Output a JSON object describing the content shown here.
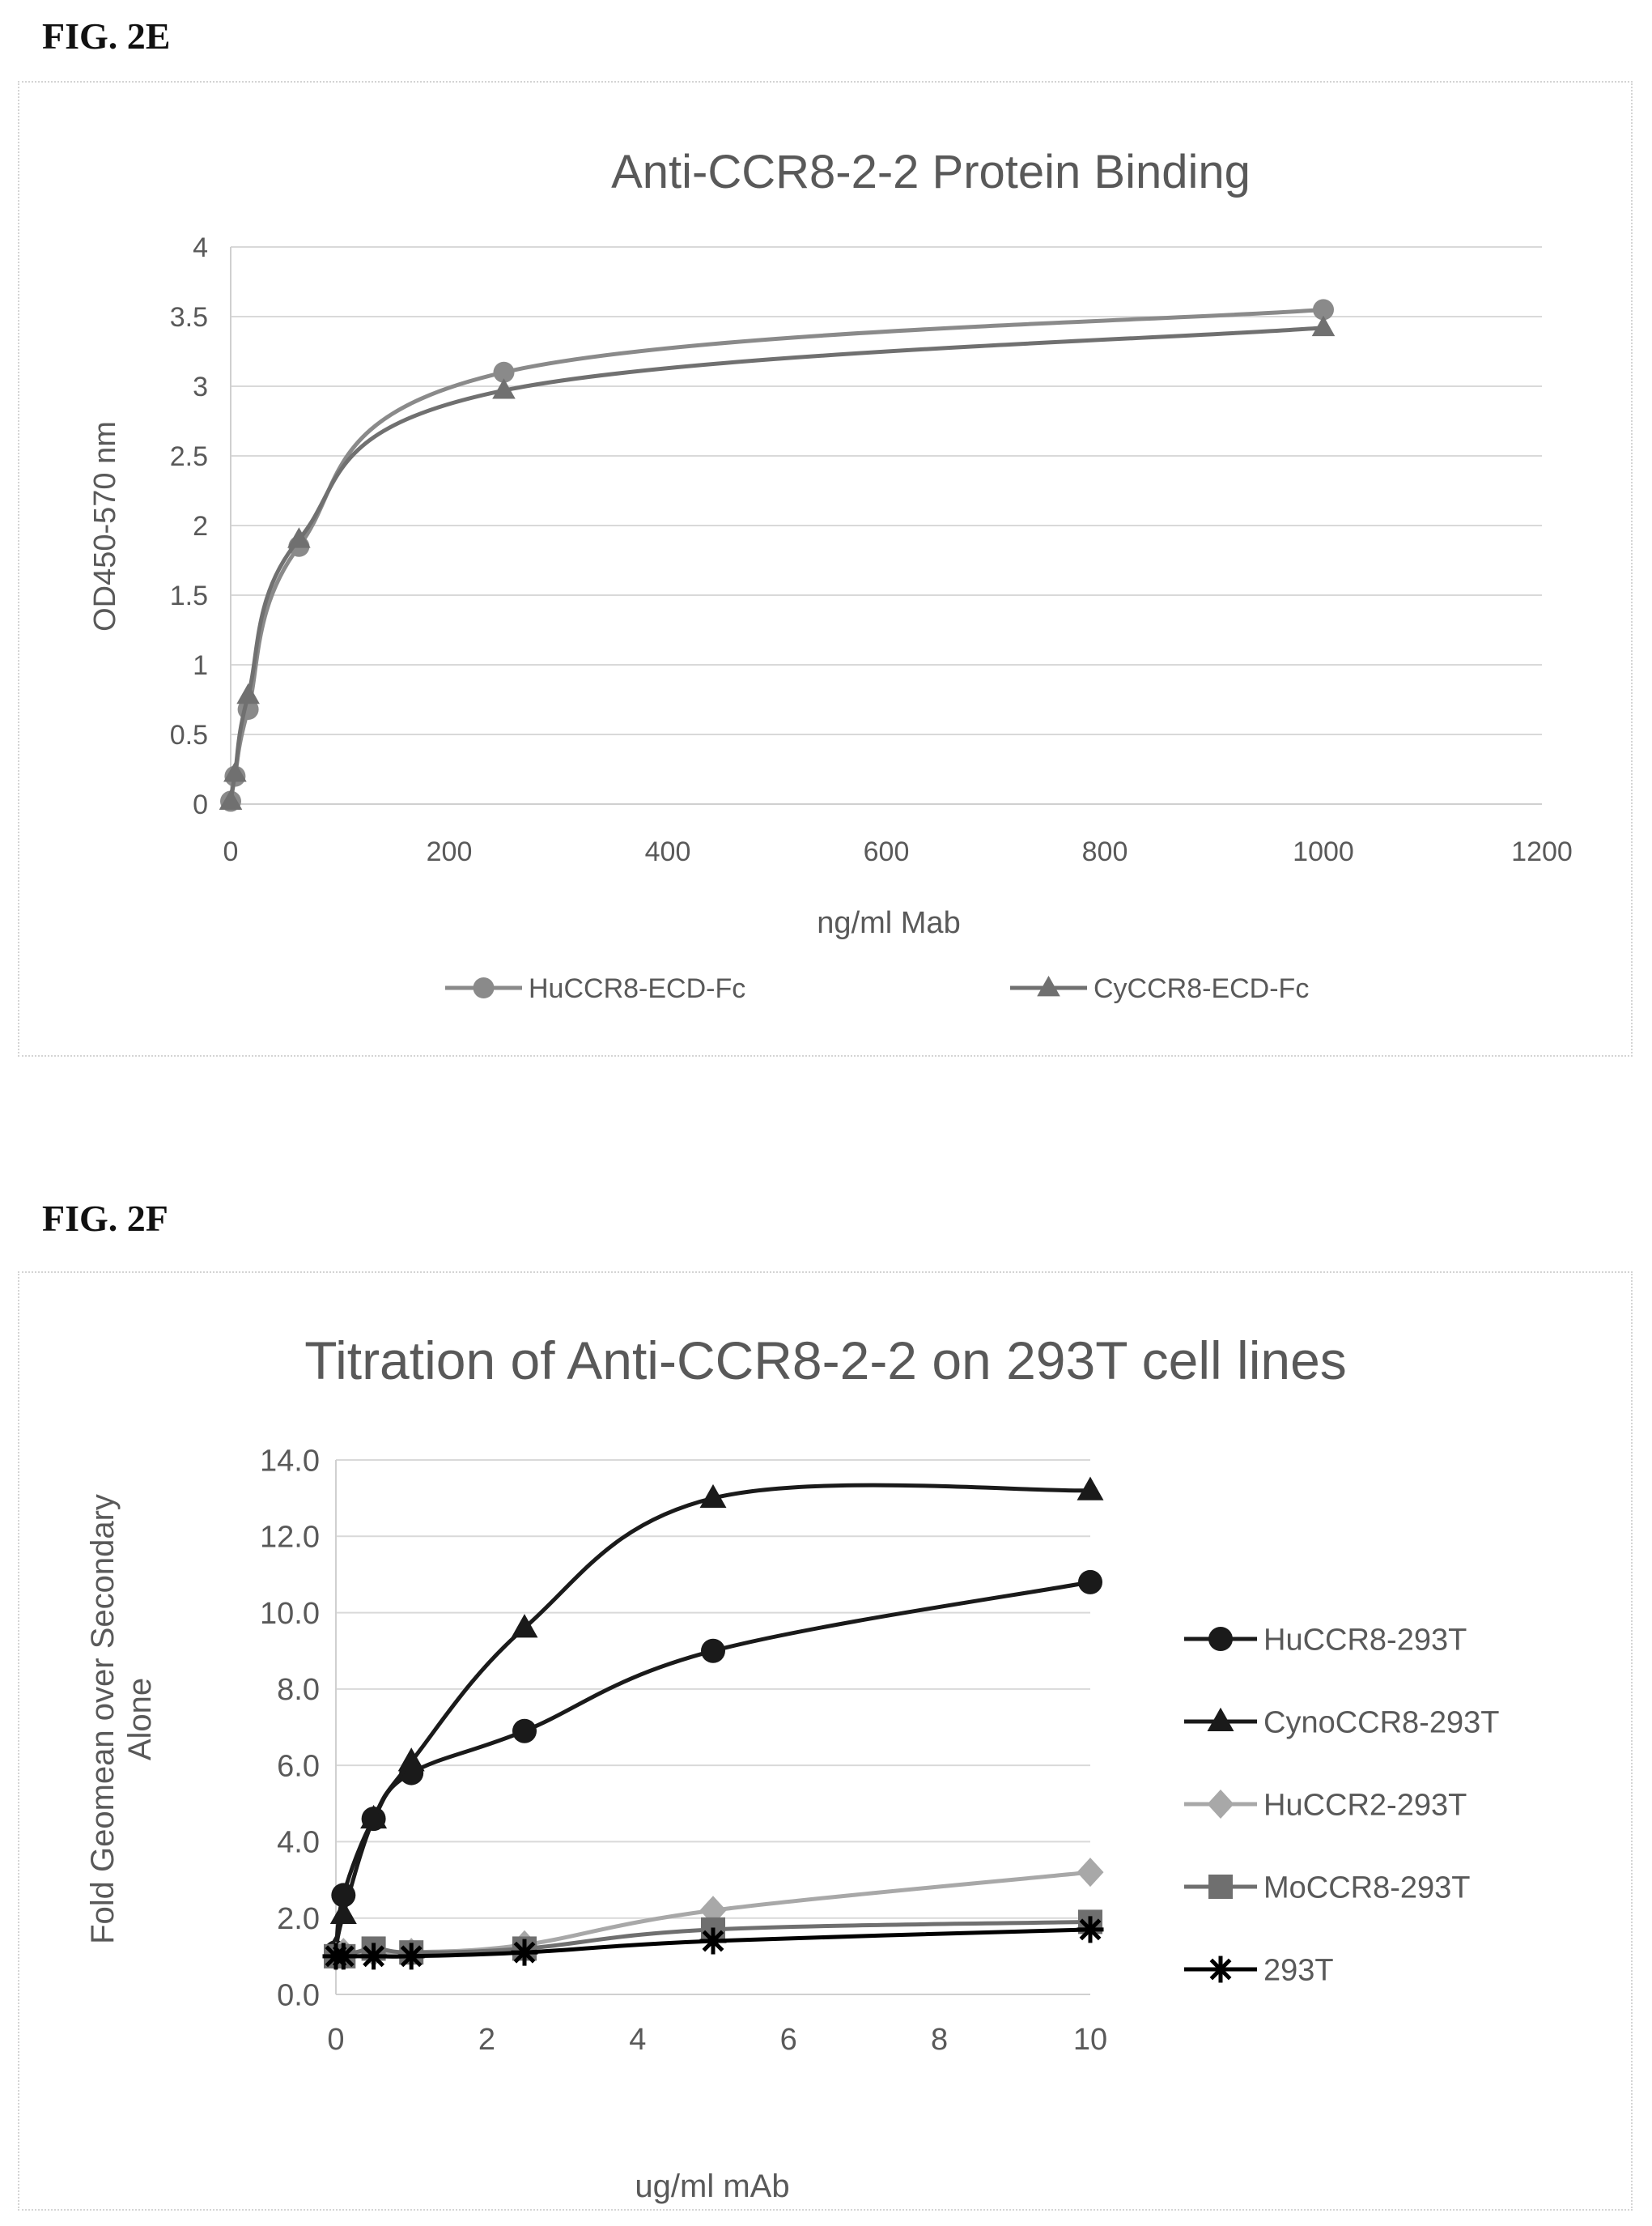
{
  "figures": [
    {
      "label": "FIG. 2E",
      "chart_data": {
        "type": "line",
        "title": "Anti-CCR8-2-2 Protein Binding",
        "xlabel": "ng/ml Mab",
        "ylabel": "OD450-570 nm",
        "xlim": [
          0,
          1200
        ],
        "ylim": [
          0,
          4
        ],
        "xticks": [
          0,
          200,
          400,
          600,
          800,
          1000,
          1200
        ],
        "yticks": [
          0,
          0.5,
          1,
          1.5,
          2,
          2.5,
          3,
          3.5,
          4
        ],
        "ytick_labels": [
          "0",
          "0.5",
          "1",
          "1.5",
          "2",
          "2.5",
          "3",
          "3.5",
          "4"
        ],
        "grid": true,
        "legend": "bottom",
        "x": [
          0,
          4,
          16,
          62.5,
          250,
          1000
        ],
        "series": [
          {
            "name": "HuCCR8-ECD-Fc",
            "marker": "circle",
            "color": "#8a8a8a",
            "values": [
              0.02,
              0.2,
              0.68,
              1.85,
              3.1,
              3.55
            ]
          },
          {
            "name": "CyCCR8-ECD-Fc",
            "marker": "triangle",
            "color": "#707070",
            "values": [
              0.02,
              0.22,
              0.78,
              1.9,
              2.97,
              3.42
            ]
          }
        ]
      }
    },
    {
      "label": "FIG. 2F",
      "chart_data": {
        "type": "line",
        "title": "Titration of Anti-CCR8-2-2 on 293T cell lines",
        "xlabel": "ug/ml mAb",
        "ylabel": "Fold Geomean over Secondary Alone",
        "xlim": [
          0,
          10
        ],
        "ylim": [
          0,
          14
        ],
        "xticks": [
          0,
          2,
          4,
          6,
          8,
          10
        ],
        "yticks": [
          0,
          2,
          4,
          6,
          8,
          10,
          12,
          14
        ],
        "ytick_labels": [
          "0.0",
          "2.0",
          "4.0",
          "6.0",
          "8.0",
          "10.0",
          "12.0",
          "14.0"
        ],
        "grid": true,
        "legend": "right",
        "x": [
          0,
          0.1,
          0.5,
          1,
          2.5,
          5,
          10
        ],
        "series": [
          {
            "name": "HuCCR8-293T",
            "marker": "circle",
            "color": "#1a1a1a",
            "values": [
              1.1,
              2.6,
              4.6,
              5.8,
              6.9,
              9.0,
              10.8
            ]
          },
          {
            "name": "CynoCCR8-293T",
            "marker": "triangle",
            "color": "#1a1a1a",
            "values": [
              1.2,
              2.1,
              4.6,
              6.1,
              9.6,
              13.0,
              13.2
            ]
          },
          {
            "name": "HuCCR2-293T",
            "marker": "diamond",
            "color": "#a8a8a8",
            "values": [
              1.0,
              1.1,
              1.1,
              1.1,
              1.3,
              2.2,
              3.2
            ]
          },
          {
            "name": "MoCCR8-293T",
            "marker": "square",
            "color": "#6f6f6f",
            "values": [
              1.0,
              1.0,
              1.2,
              1.1,
              1.2,
              1.7,
              1.9
            ]
          },
          {
            "name": "293T",
            "marker": "star",
            "color": "#000000",
            "values": [
              1.0,
              1.0,
              1.0,
              1.0,
              1.1,
              1.4,
              1.7
            ]
          }
        ]
      }
    }
  ]
}
